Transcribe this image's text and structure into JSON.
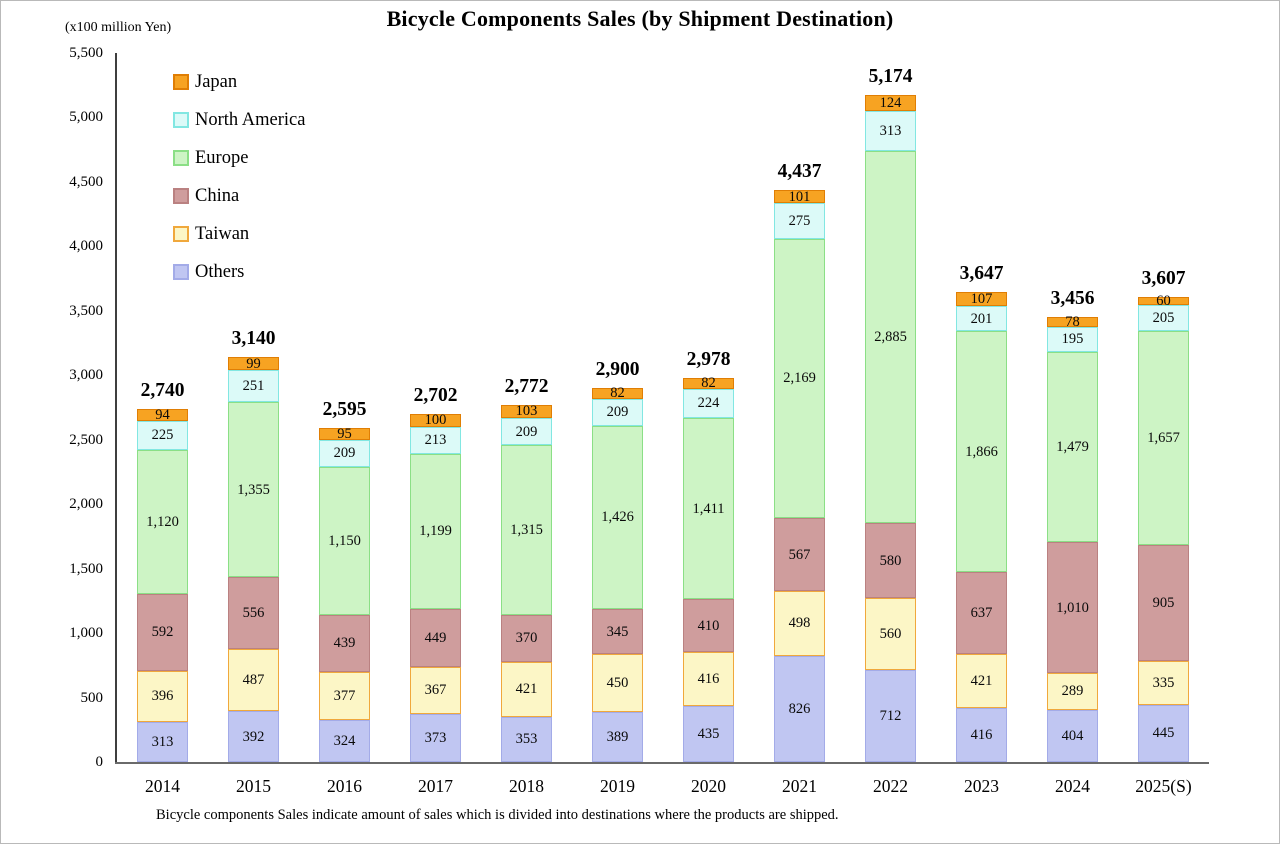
{
  "title": "Bicycle Components Sales (by Shipment Destination)",
  "unit_label": "(x100 million Yen)",
  "footnote": "Bicycle components Sales indicate amount of sales which is divided into destinations where the products are shipped.",
  "chart_data": {
    "type": "bar",
    "stacked": true,
    "grid": false,
    "legend_position": "top-left-inside",
    "xlabel": "",
    "ylabel": "(x100 million Yen)",
    "ylim": [
      0,
      5500
    ],
    "ytick_step": 500,
    "categories": [
      "2014",
      "2015",
      "2016",
      "2017",
      "2018",
      "2019",
      "2020",
      "2021",
      "2022",
      "2023",
      "2024",
      "2025(S)"
    ],
    "totals": [
      2740,
      3140,
      2595,
      2702,
      2772,
      2900,
      2978,
      4437,
      5174,
      3647,
      3456,
      3607
    ],
    "series": [
      {
        "name": "Japan",
        "color": "#F7A322",
        "border": "#E07E04",
        "values": [
          94,
          99,
          95,
          100,
          103,
          82,
          82,
          101,
          124,
          107,
          78,
          60
        ]
      },
      {
        "name": "North America",
        "color": "#DCFAF8",
        "border": "#82E7E2",
        "values": [
          225,
          251,
          209,
          213,
          209,
          209,
          224,
          275,
          313,
          201,
          195,
          205
        ]
      },
      {
        "name": "Europe",
        "color": "#CDF4C5",
        "border": "#8BDF86",
        "values": [
          1120,
          1355,
          1150,
          1199,
          1315,
          1426,
          1411,
          2169,
          2885,
          1866,
          1479,
          1657
        ]
      },
      {
        "name": "China",
        "color": "#CF9D9D",
        "border": "#BA8181",
        "values": [
          592,
          556,
          439,
          449,
          370,
          345,
          410,
          567,
          580,
          637,
          1010,
          905
        ]
      },
      {
        "name": "Taiwan",
        "color": "#FCF6C6",
        "border": "#F0A83C",
        "values": [
          396,
          487,
          377,
          367,
          421,
          450,
          416,
          498,
          560,
          421,
          289,
          335
        ]
      },
      {
        "name": "Others",
        "color": "#C0C6F2",
        "border": "#A3ABE8",
        "values": [
          313,
          392,
          324,
          373,
          353,
          389,
          435,
          826,
          712,
          416,
          404,
          445
        ]
      }
    ]
  }
}
